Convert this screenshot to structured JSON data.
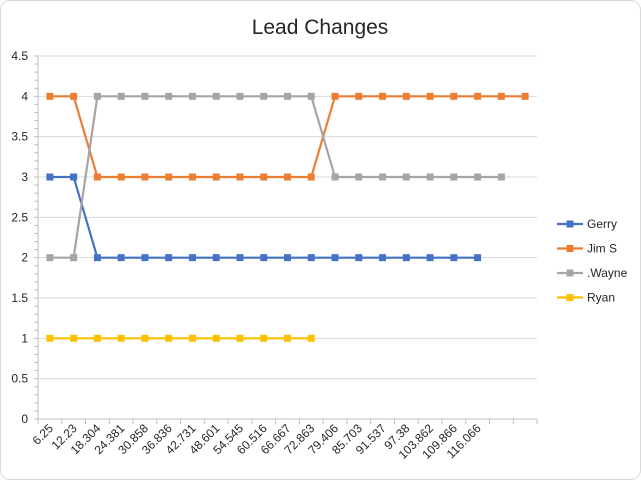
{
  "chart_data": {
    "type": "line",
    "title": "Lead Changes",
    "xlabel": "",
    "ylabel": "",
    "ylim": [
      0,
      4.5
    ],
    "ytick_step": 0.5,
    "y_ticks": [
      "0",
      "0.5",
      "1",
      "1.5",
      "2",
      "2.5",
      "3",
      "3.5",
      "4",
      "4.5"
    ],
    "grid": true,
    "legend_position": "right",
    "x_tick_labels": [
      "6.25",
      "12.23",
      "18.304",
      "24.381",
      "30.858",
      "36.836",
      "42.731",
      "48.601",
      "54.545",
      "60.516",
      "66.667",
      "72.863",
      "79.406",
      "85.703",
      "91.537",
      "97.38",
      "103.862",
      "109.866",
      "116.066"
    ],
    "x_category_count": 21,
    "series": [
      {
        "name": "Gerry",
        "color": "#4472C4",
        "values": [
          3,
          3,
          2,
          2,
          2,
          2,
          2,
          2,
          2,
          2,
          2,
          2,
          2,
          2,
          2,
          2,
          2,
          2,
          2,
          null,
          null
        ]
      },
      {
        "name": "Jim S",
        "color": "#ED7D31",
        "values": [
          4,
          4,
          3,
          3,
          3,
          3,
          3,
          3,
          3,
          3,
          3,
          3,
          4,
          4,
          4,
          4,
          4,
          4,
          4,
          4,
          4
        ]
      },
      {
        "name": ".Wayne",
        "color": "#A5A5A5",
        "values": [
          2,
          2,
          4,
          4,
          4,
          4,
          4,
          4,
          4,
          4,
          4,
          4,
          3,
          3,
          3,
          3,
          3,
          3,
          3,
          3,
          null
        ]
      },
      {
        "name": "Ryan",
        "color": "#FFC000",
        "values": [
          1,
          1,
          1,
          1,
          1,
          1,
          1,
          1,
          1,
          1,
          1,
          1,
          null,
          null,
          null,
          null,
          null,
          null,
          null,
          null,
          null
        ]
      }
    ]
  }
}
